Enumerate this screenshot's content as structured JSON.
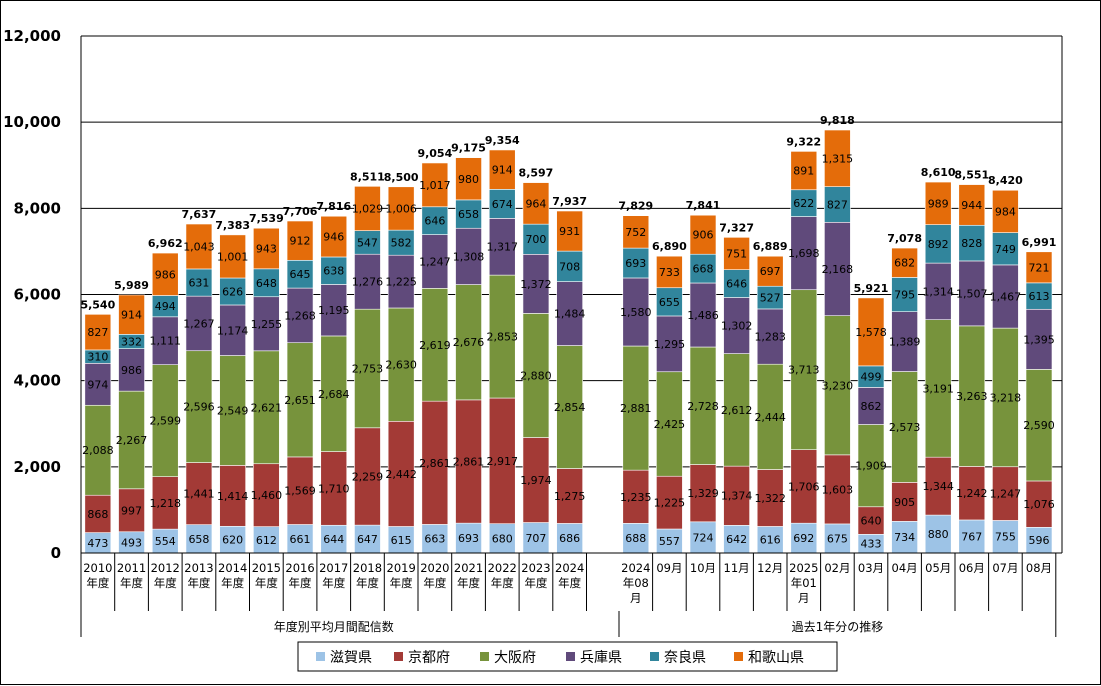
{
  "colors": {
    "shiga": "#9dc3e6",
    "kyoto": "#a33a36",
    "osaka": "#77933c",
    "hyogo": "#604a7b",
    "nara": "#31859c",
    "wakayama": "#e46c0a"
  },
  "chart_data": {
    "type": "bar",
    "stacked": true,
    "ylim": [
      0,
      12000
    ],
    "yticks": [
      "0",
      "2,000",
      "4,000",
      "6,000",
      "8,000",
      "10,000",
      "12,000"
    ],
    "grid": true,
    "legend_position": "bottom",
    "groups": [
      {
        "label": "年度別平均月間配信数",
        "count": 15
      },
      {
        "label": "過去1年分の推移",
        "count": 13
      }
    ],
    "categories": [
      [
        "2010",
        "年度"
      ],
      [
        "2011",
        "年度"
      ],
      [
        "2012",
        "年度"
      ],
      [
        "2013",
        "年度"
      ],
      [
        "2014",
        "年度"
      ],
      [
        "2015",
        "年度"
      ],
      [
        "2016",
        "年度"
      ],
      [
        "2017",
        "年度"
      ],
      [
        "2018",
        "年度"
      ],
      [
        "2019",
        "年度"
      ],
      [
        "2020",
        "年度"
      ],
      [
        "2021",
        "年度"
      ],
      [
        "2022",
        "年度"
      ],
      [
        "2023",
        "年度"
      ],
      [
        "2024",
        "年度"
      ],
      [
        "2024",
        "年08",
        "月"
      ],
      [
        "09月"
      ],
      [
        "10月"
      ],
      [
        "11月"
      ],
      [
        "12月"
      ],
      [
        "2025",
        "年01",
        "月"
      ],
      [
        "02月"
      ],
      [
        "03月"
      ],
      [
        "04月"
      ],
      [
        "05月"
      ],
      [
        "06月"
      ],
      [
        "07月"
      ],
      [
        "08月"
      ]
    ],
    "series": [
      {
        "name": "滋賀県",
        "color_key": "shiga",
        "values": [
          473,
          493,
          554,
          658,
          620,
          612,
          661,
          644,
          647,
          615,
          663,
          693,
          680,
          707,
          686,
          688,
          557,
          724,
          642,
          616,
          692,
          675,
          433,
          734,
          880,
          767,
          755,
          596
        ]
      },
      {
        "name": "京都府",
        "color_key": "kyoto",
        "values": [
          868,
          997,
          1218,
          1441,
          1414,
          1460,
          1569,
          1710,
          2259,
          2442,
          2861,
          2861,
          2917,
          1974,
          1275,
          1235,
          1225,
          1329,
          1374,
          1322,
          1706,
          1603,
          640,
          905,
          1344,
          1242,
          1247,
          1076
        ]
      },
      {
        "name": "大阪府",
        "color_key": "osaka",
        "values": [
          2088,
          2267,
          2599,
          2596,
          2549,
          2621,
          2651,
          2684,
          2753,
          2630,
          2619,
          2676,
          2853,
          2880,
          2854,
          2881,
          2425,
          2728,
          2612,
          2444,
          3713,
          3230,
          1909,
          2573,
          3191,
          3263,
          3218,
          2590
        ]
      },
      {
        "name": "兵庫県",
        "color_key": "hyogo",
        "values": [
          974,
          986,
          1111,
          1267,
          1174,
          1255,
          1268,
          1195,
          1276,
          1225,
          1247,
          1308,
          1317,
          1372,
          1484,
          1580,
          1295,
          1486,
          1302,
          1283,
          1698,
          2168,
          862,
          1389,
          1314,
          1507,
          1467,
          1395
        ]
      },
      {
        "name": "奈良県",
        "color_key": "nara",
        "values": [
          310,
          332,
          494,
          631,
          626,
          648,
          645,
          638,
          547,
          582,
          646,
          658,
          674,
          700,
          708,
          693,
          655,
          668,
          646,
          527,
          622,
          827,
          499,
          795,
          892,
          828,
          749,
          613
        ]
      },
      {
        "name": "和歌山県",
        "color_key": "wakayama",
        "values": [
          827,
          914,
          986,
          1043,
          1001,
          943,
          912,
          946,
          1029,
          1006,
          1017,
          980,
          914,
          964,
          931,
          752,
          733,
          906,
          751,
          697,
          891,
          1315,
          1578,
          682,
          989,
          944,
          984,
          721
        ]
      }
    ],
    "totals": [
      5540,
      5989,
      6962,
      7637,
      7383,
      7539,
      7706,
      7816,
      8511,
      8500,
      9054,
      9175,
      9354,
      8597,
      7937,
      7829,
      6890,
      7841,
      7327,
      6889,
      9322,
      9818,
      5921,
      7078,
      8610,
      8551,
      8420,
      6991
    ]
  }
}
